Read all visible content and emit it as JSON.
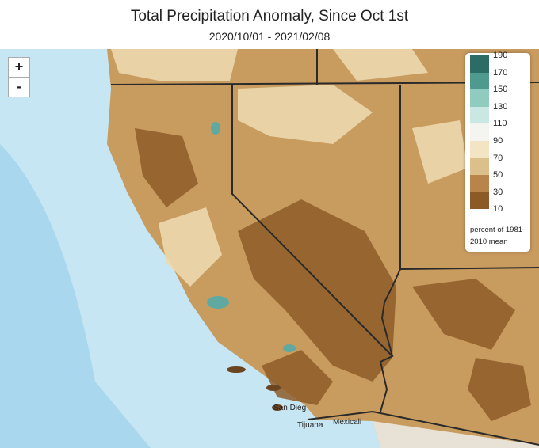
{
  "header": {
    "title": "Total Precipitation Anomaly, Since Oct 1st",
    "subtitle": "2020/10/01 - 2021/02/08"
  },
  "controls": {
    "zoom_in": "+",
    "zoom_out": "-"
  },
  "legend": {
    "breaks": [
      190,
      170,
      150,
      130,
      110,
      90,
      70,
      50,
      30,
      10
    ],
    "colors": [
      "#2b6d66",
      "#4e9a8f",
      "#8fcbbf",
      "#c9e8e3",
      "#f4f5f1",
      "#f3e4c4",
      "#dcc08c",
      "#b98449",
      "#8b5a27"
    ],
    "caption": "percent of 1981-2010 mean"
  },
  "places": {
    "san_diego": "San Dieg",
    "tijuana": "Tijuana",
    "mexicali": "Mexicali"
  }
}
